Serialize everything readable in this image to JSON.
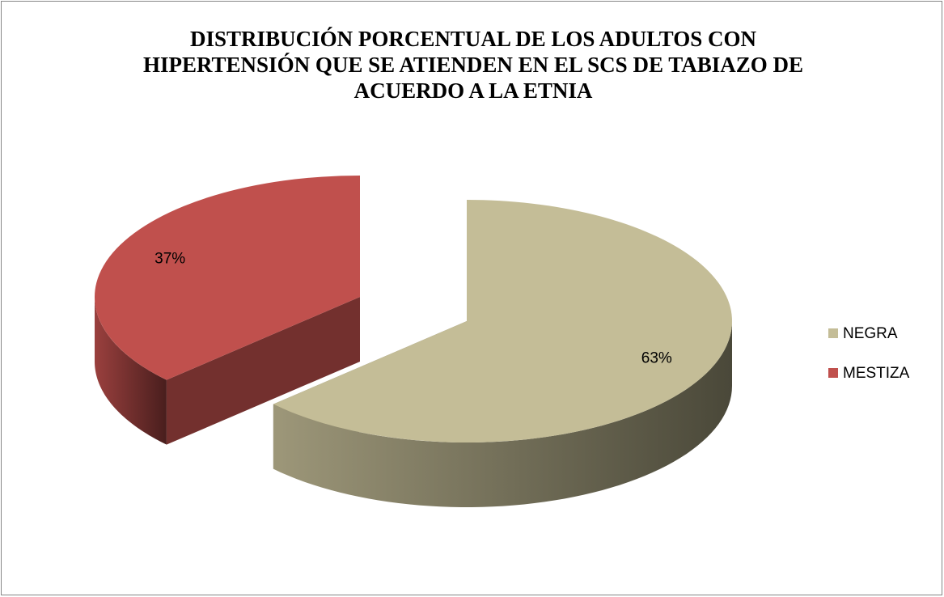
{
  "chart_data": {
    "type": "pie",
    "title": "DISTRIBUCIÓN PORCENTUAL DE LOS ADULTOS CON HIPERTENSIÓN QUE SE ATIENDEN EN EL SCS DE TABIAZO DE ACUERDO A LA ETNIA",
    "categories": [
      "NEGRA",
      "MESTIZA"
    ],
    "values": [
      63,
      37
    ],
    "value_labels": [
      "63%",
      "37%"
    ],
    "colors": [
      "#c4bd97",
      "#c0504d"
    ],
    "legend": "right"
  }
}
